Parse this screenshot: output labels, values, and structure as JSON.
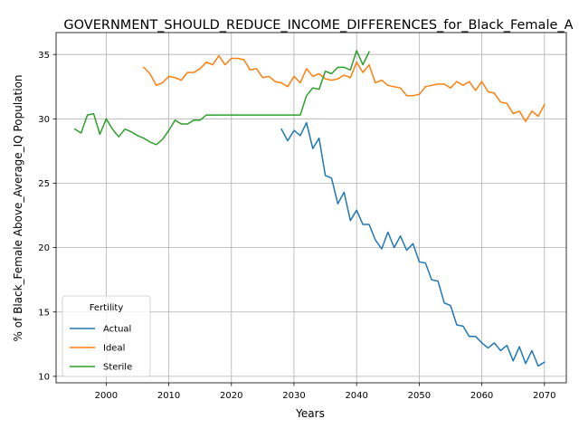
{
  "chart_data": {
    "type": "line",
    "title": "GOVERNMENT_SHOULD_REDUCE_INCOME_DIFFERENCES_for_Black_Female_A",
    "xlabel": "Years",
    "ylabel": "% of Black_Female Above_Average_IQ Population",
    "xlim": [
      1992,
      2073.5
    ],
    "ylim": [
      9.5,
      36.7
    ],
    "x_ticks": [
      2000,
      2010,
      2020,
      2030,
      2040,
      2050,
      2060,
      2070
    ],
    "y_ticks": [
      10,
      15,
      20,
      25,
      30,
      35
    ],
    "grid": true,
    "legend": {
      "title": "Fertility",
      "placement": "lower-left"
    },
    "series": [
      {
        "name": "Actual",
        "color": "#1f77b4",
        "x": [
          2028,
          2029,
          2030,
          2031,
          2032,
          2033,
          2034,
          2035,
          2036,
          2037,
          2038,
          2039,
          2040,
          2041,
          2042,
          2043,
          2044,
          2045,
          2046,
          2047,
          2048,
          2049,
          2050,
          2051,
          2052,
          2053,
          2054,
          2055,
          2056,
          2057,
          2058,
          2059,
          2060,
          2061,
          2062,
          2063,
          2064,
          2065,
          2066,
          2067,
          2068,
          2069,
          2070
        ],
        "y": [
          29.2,
          28.3,
          29.1,
          28.7,
          29.7,
          27.7,
          28.5,
          25.6,
          25.4,
          23.4,
          24.3,
          22.1,
          22.9,
          21.8,
          21.8,
          20.6,
          19.9,
          21.2,
          20.0,
          20.9,
          19.8,
          20.3,
          18.9,
          18.8,
          17.5,
          17.4,
          15.7,
          15.5,
          14.0,
          13.9,
          13.1,
          13.1,
          12.6,
          12.2,
          12.6,
          12.0,
          12.4,
          11.2,
          12.3,
          11.0,
          12.0,
          10.8,
          11.1
        ]
      },
      {
        "name": "Ideal",
        "color": "#ff7f0e",
        "x": [
          2006,
          2007,
          2008,
          2009,
          2010,
          2011,
          2012,
          2013,
          2014,
          2015,
          2016,
          2017,
          2018,
          2019,
          2020,
          2021,
          2022,
          2023,
          2024,
          2025,
          2026,
          2027,
          2028,
          2029,
          2030,
          2031,
          2032,
          2033,
          2034,
          2035,
          2036,
          2037,
          2038,
          2039,
          2040,
          2041,
          2042,
          2043,
          2044,
          2045,
          2046,
          2047,
          2048,
          2049,
          2050,
          2051,
          2052,
          2053,
          2054,
          2055,
          2056,
          2057,
          2058,
          2059,
          2060,
          2061,
          2062,
          2063,
          2064,
          2065,
          2066,
          2067,
          2068,
          2069,
          2070
        ],
        "y": [
          34.0,
          33.5,
          32.6,
          32.8,
          33.3,
          33.2,
          33.0,
          33.6,
          33.6,
          33.9,
          34.4,
          34.2,
          34.9,
          34.2,
          34.7,
          34.7,
          34.6,
          33.8,
          33.9,
          33.2,
          33.3,
          32.9,
          32.8,
          32.5,
          33.3,
          32.8,
          33.9,
          33.3,
          33.5,
          33.1,
          33.0,
          33.1,
          33.4,
          33.2,
          34.4,
          33.6,
          34.2,
          32.8,
          33.0,
          32.6,
          32.5,
          32.4,
          31.8,
          31.8,
          31.9,
          32.5,
          32.6,
          32.7,
          32.7,
          32.4,
          32.9,
          32.6,
          32.9,
          32.2,
          32.9,
          32.1,
          32.0,
          31.3,
          31.2,
          30.4,
          30.6,
          29.8,
          30.6,
          30.2,
          31.1
        ]
      },
      {
        "name": "Sterile",
        "color": "#2ca02c",
        "x": [
          1995,
          1996,
          1997,
          1998,
          1999,
          2000,
          2001,
          2002,
          2003,
          2004,
          2005,
          2006,
          2007,
          2008,
          2009,
          2010,
          2011,
          2012,
          2013,
          2014,
          2015,
          2016,
          2017,
          2018,
          2019,
          2020,
          2021,
          2022,
          2023,
          2024,
          2025,
          2026,
          2027,
          2028,
          2029,
          2030,
          2031,
          2032,
          2033,
          2034,
          2035,
          2036,
          2037,
          2038,
          2039,
          2040,
          2041,
          2042
        ],
        "y": [
          29.2,
          28.9,
          30.3,
          30.4,
          28.8,
          30.0,
          29.2,
          28.6,
          29.2,
          29.0,
          28.7,
          28.5,
          28.2,
          28.0,
          28.4,
          29.1,
          29.9,
          29.6,
          29.6,
          29.9,
          29.9,
          30.3,
          30.3,
          30.3,
          30.3,
          30.3,
          30.3,
          30.3,
          30.3,
          30.3,
          30.3,
          30.3,
          30.3,
          30.3,
          30.3,
          30.3,
          30.3,
          31.8,
          32.4,
          32.3,
          33.7,
          33.5,
          34.0,
          34.0,
          33.8,
          35.3,
          34.2,
          35.2
        ]
      }
    ]
  }
}
